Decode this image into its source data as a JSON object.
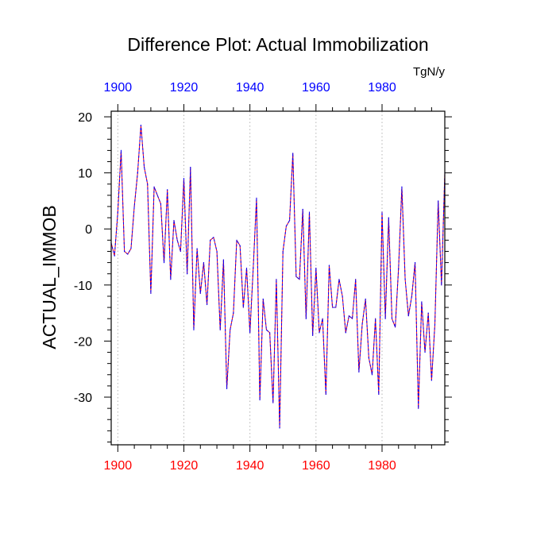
{
  "colors": {
    "background": "#ffffff",
    "axis": "#000000",
    "grid": "#b4b4b4",
    "bottom_tick_labels": "#ff0000",
    "top_tick_labels": "#0000ff",
    "series_primary": "#ff0000",
    "series_overlay": "#0000ff"
  },
  "chart_data": {
    "type": "line",
    "title": "Difference Plot: Actual Immobilization",
    "ylabel": "ACTUAL_IMMOB",
    "xlabel": "",
    "units": "TgN/y",
    "xlim": [
      1898,
      1999
    ],
    "ylim": [
      -38.5,
      21
    ],
    "x_ticks": [
      1900,
      1920,
      1940,
      1960,
      1980
    ],
    "x_tick_labels": [
      "1900",
      "1920",
      "1940",
      "1960",
      "1980"
    ],
    "top_x_tick_labels": [
      "1900",
      "1920",
      "1940",
      "1960",
      "1980"
    ],
    "y_ticks": [
      20,
      10,
      0,
      -10,
      -20,
      -30
    ],
    "y_tick_labels": [
      "20",
      "10",
      "0",
      "-10",
      "-20",
      "-30"
    ],
    "grid": "vertical dotted at x ticks",
    "x": [
      1898,
      1899,
      1900,
      1901,
      1902,
      1903,
      1904,
      1905,
      1906,
      1907,
      1908,
      1909,
      1910,
      1911,
      1912,
      1913,
      1914,
      1915,
      1916,
      1917,
      1918,
      1919,
      1920,
      1921,
      1922,
      1923,
      1924,
      1925,
      1926,
      1927,
      1928,
      1929,
      1930,
      1931,
      1932,
      1933,
      1934,
      1935,
      1936,
      1937,
      1938,
      1939,
      1940,
      1941,
      1942,
      1943,
      1944,
      1945,
      1946,
      1947,
      1948,
      1949,
      1950,
      1951,
      1952,
      1953,
      1954,
      1955,
      1956,
      1957,
      1958,
      1959,
      1960,
      1961,
      1962,
      1963,
      1964,
      1965,
      1966,
      1967,
      1968,
      1969,
      1970,
      1971,
      1972,
      1973,
      1974,
      1975,
      1976,
      1977,
      1978,
      1979,
      1980,
      1981,
      1982,
      1983,
      1984,
      1985,
      1986,
      1987,
      1988,
      1989,
      1990,
      1991,
      1992,
      1993,
      1994,
      1995,
      1996,
      1997,
      1998,
      1999
    ],
    "series": [
      {
        "name": "ACTUAL_IMMOB",
        "values": [
          -2.5,
          -4.8,
          3,
          14,
          -4,
          -4.5,
          -3.5,
          4,
          10,
          18.5,
          11,
          8,
          -11.5,
          7.5,
          6,
          4.5,
          -6,
          7,
          -9,
          1.5,
          -2,
          -4,
          9,
          -8,
          11,
          -18,
          -3.5,
          -11.5,
          -6,
          -13.5,
          -2,
          -1.5,
          -4,
          -18,
          -5.5,
          -28.5,
          -18,
          -15,
          -2,
          -3,
          -14,
          -7,
          -18.5,
          -7,
          5.5,
          -30.5,
          -12.5,
          -18,
          -18.5,
          -31,
          -9,
          -35.5,
          -4,
          0.5,
          1.5,
          13.5,
          -8.5,
          -9,
          3.5,
          -16,
          3,
          -19,
          -7,
          -18.5,
          -16,
          -29.5,
          -6.5,
          -14,
          -14,
          -9,
          -12,
          -18.5,
          -15.5,
          -16,
          -9,
          -25.5,
          -17,
          -12.5,
          -23,
          -26,
          -16,
          -29.5,
          3,
          -16,
          2,
          -16,
          -17.5,
          -7,
          7.5,
          -9,
          -15.5,
          -12,
          -6,
          -32,
          -13,
          -22,
          -15,
          -27,
          -17,
          5,
          -10,
          10
        ]
      }
    ]
  }
}
